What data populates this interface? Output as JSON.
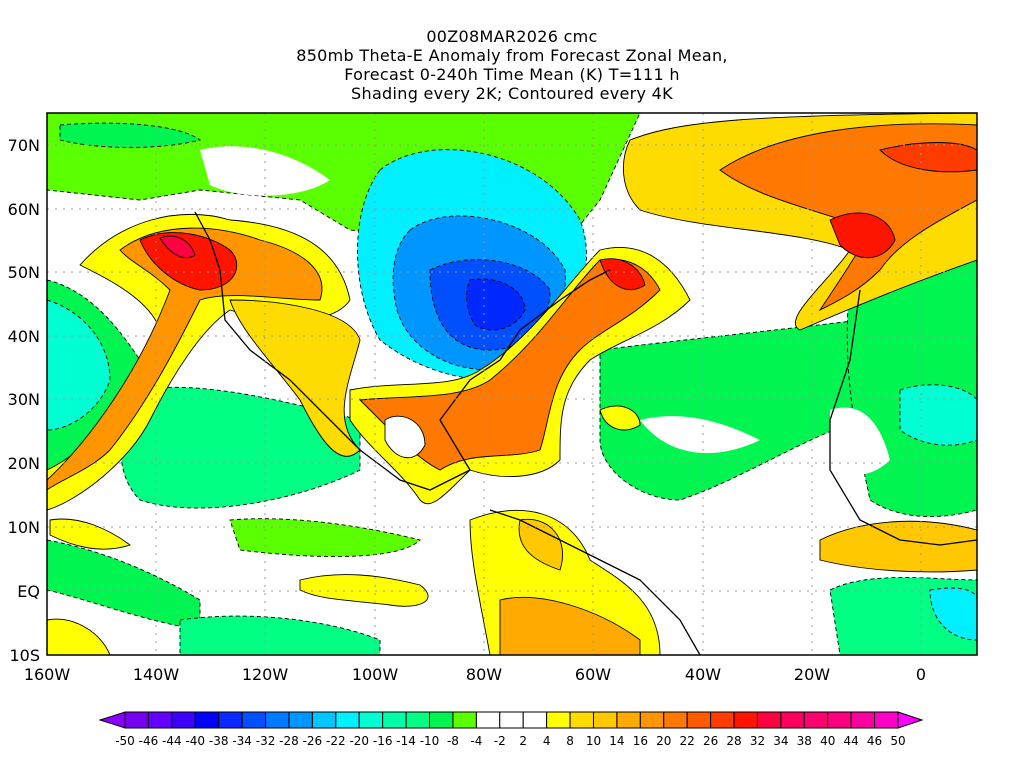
{
  "title": {
    "line1": "00Z08MAR2026 cmc",
    "line2": "850mb Theta-E Anomaly from Forecast Zonal Mean,",
    "line3": "Forecast 0-240h Time Mean (K) T=111 h",
    "line4": "Shading every 2K; Contoured every 4K"
  },
  "axes": {
    "lat_labels": [
      "70N",
      "60N",
      "50N",
      "40N",
      "30N",
      "20N",
      "10N",
      "EQ",
      "10S"
    ],
    "lon_labels": [
      "160W",
      "140W",
      "120W",
      "100W",
      "80W",
      "60W",
      "40W",
      "20W",
      "0"
    ]
  },
  "colorbar": {
    "labels": [
      "-50",
      "-46",
      "-44",
      "-40",
      "-38",
      "-34",
      "-32",
      "-28",
      "-26",
      "-22",
      "-20",
      "-16",
      "-14",
      "-10",
      "-8",
      "-4",
      "-2",
      "2",
      "4",
      "8",
      "10",
      "14",
      "16",
      "20",
      "22",
      "26",
      "28",
      "32",
      "34",
      "38",
      "40",
      "44",
      "46",
      "50"
    ],
    "under_color": "#8a00ff",
    "over_color": "#ff00ff",
    "colors": [
      "#7800f0",
      "#6400ff",
      "#3c00ff",
      "#0000ff",
      "#0a28ff",
      "#0050ff",
      "#0078ff",
      "#0096ff",
      "#00c8ff",
      "#00f0ff",
      "#00ffd2",
      "#00ffaa",
      "#00ff82",
      "#00f550",
      "#5aff00",
      "#ffffff",
      "#ffffff",
      "#ffffff",
      "#ffff00",
      "#ffdc00",
      "#ffc800",
      "#ffaa00",
      "#ff9600",
      "#ff7800",
      "#ff5a00",
      "#ff3c00",
      "#ff1400",
      "#ff0040",
      "#ff0060",
      "#ff0070",
      "#ff0080",
      "#ff00a0",
      "#ff00c8"
    ]
  }
}
